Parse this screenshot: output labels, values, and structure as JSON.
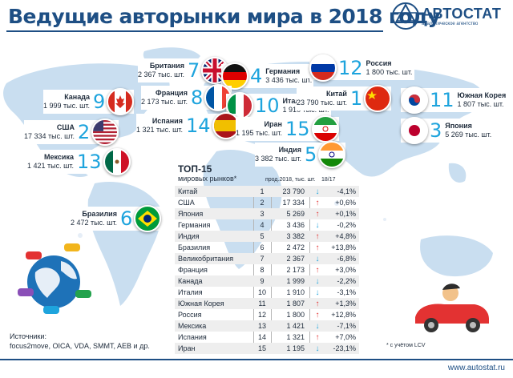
{
  "header": {
    "title": "Ведущие авторынки мира в 2018 году",
    "logo_name": "АВТОСТАТ",
    "logo_sub": "аналитическое агентство"
  },
  "colors": {
    "brand_blue": "#1e4f84",
    "rank_cyan": "#1ea4dd",
    "up_red": "#e33232",
    "down_blue": "#1ea4dd",
    "map_land": "#c9def0",
    "map_water": "#ffffff"
  },
  "callouts": [
    {
      "country": "Британия",
      "value": "2 367 тыс. шт.",
      "rank": "7",
      "flag": "uk-flag-icon"
    },
    {
      "country": "Германия",
      "value": "3 436 тыс. шт.",
      "rank": "4",
      "flag": "germany-flag-icon"
    },
    {
      "country": "Россия",
      "value": "1 800 тыс. шт.",
      "rank": "12",
      "flag": "russia-flag-icon"
    },
    {
      "country": "Канада",
      "value": "1 999 тыс. шт.",
      "rank": "9",
      "flag": "canada-flag-icon"
    },
    {
      "country": "Франция",
      "value": "2 173 тыс. шт.",
      "rank": "8",
      "flag": "france-flag-icon"
    },
    {
      "country": "Италия",
      "value": "1 910 тыс. шт.",
      "rank": "10",
      "flag": "italy-flag-icon"
    },
    {
      "country": "Китай",
      "value": "23 790 тыс. шт.",
      "rank": "1",
      "flag": "china-flag-icon"
    },
    {
      "country": "Южная Корея",
      "value": "1 807 тыс. шт.",
      "rank": "11",
      "flag": "south-korea-flag-icon"
    },
    {
      "country": "США",
      "value": "17 334 тыс. шт.",
      "rank": "2",
      "flag": "usa-flag-icon"
    },
    {
      "country": "Испания",
      "value": "1 321 тыс. шт.",
      "rank": "14",
      "flag": "spain-flag-icon"
    },
    {
      "country": "Иран",
      "value": "1 195 тыс. шт.",
      "rank": "15",
      "flag": "iran-flag-icon"
    },
    {
      "country": "Япония",
      "value": "5 269 тыс. шт.",
      "rank": "3",
      "flag": "japan-flag-icon"
    },
    {
      "country": "Мексика",
      "value": "1 421 тыс. шт.",
      "rank": "13",
      "flag": "mexico-flag-icon"
    },
    {
      "country": "Индия",
      "value": "3 382 тыс. шт.",
      "rank": "5",
      "flag": "india-flag-icon"
    },
    {
      "country": "Бразилия",
      "value": "2 472 тыс. шт.",
      "rank": "6",
      "flag": "brazil-flag-icon"
    }
  ],
  "chart_data": {
    "type": "table",
    "title": "ТОП-15",
    "subtitle": "мировых рынков*",
    "columns": [
      "",
      "",
      "прод.2018, тыс. шт.",
      "",
      "18/17"
    ],
    "rows": [
      {
        "country": "Китай",
        "rank": 1,
        "value": "23 790",
        "dir": "down",
        "change": "-4,1%"
      },
      {
        "country": "США",
        "rank": 2,
        "value": "17 334",
        "dir": "up",
        "change": "+0,6%"
      },
      {
        "country": "Япония",
        "rank": 3,
        "value": "5 269",
        "dir": "up",
        "change": "+0,1%"
      },
      {
        "country": "Германия",
        "rank": 4,
        "value": "3 436",
        "dir": "down",
        "change": "-0,2%"
      },
      {
        "country": "Индия",
        "rank": 5,
        "value": "3 382",
        "dir": "up",
        "change": "+4,8%"
      },
      {
        "country": "Бразилия",
        "rank": 6,
        "value": "2 472",
        "dir": "up",
        "change": "+13,8%"
      },
      {
        "country": "Великобритания",
        "rank": 7,
        "value": "2 367",
        "dir": "down",
        "change": "-6,8%"
      },
      {
        "country": "Франция",
        "rank": 8,
        "value": "2 173",
        "dir": "up",
        "change": "+3,0%"
      },
      {
        "country": "Канада",
        "rank": 9,
        "value": "1 999",
        "dir": "down",
        "change": "-2,2%"
      },
      {
        "country": "Италия",
        "rank": 10,
        "value": "1 910",
        "dir": "down",
        "change": "-3,1%"
      },
      {
        "country": "Южная Корея",
        "rank": 11,
        "value": "1 807",
        "dir": "up",
        "change": "+1,3%"
      },
      {
        "country": "Россия",
        "rank": 12,
        "value": "1 800",
        "dir": "up",
        "change": "+12,8%"
      },
      {
        "country": "Мексика",
        "rank": 13,
        "value": "1 421",
        "dir": "down",
        "change": "-7,1%"
      },
      {
        "country": "Испания",
        "rank": 14,
        "value": "1 321",
        "dir": "up",
        "change": "+7,0%"
      },
      {
        "country": "Иран",
        "rank": 15,
        "value": "1 195",
        "dir": "down",
        "change": "-23,1%"
      }
    ]
  },
  "footer": {
    "sources_label": "Источники:",
    "sources": "focus2move, OICA, VDA, SMMT, AEB и др.",
    "footnote": "* с учётом LCV",
    "site": "www.autostat.ru"
  }
}
